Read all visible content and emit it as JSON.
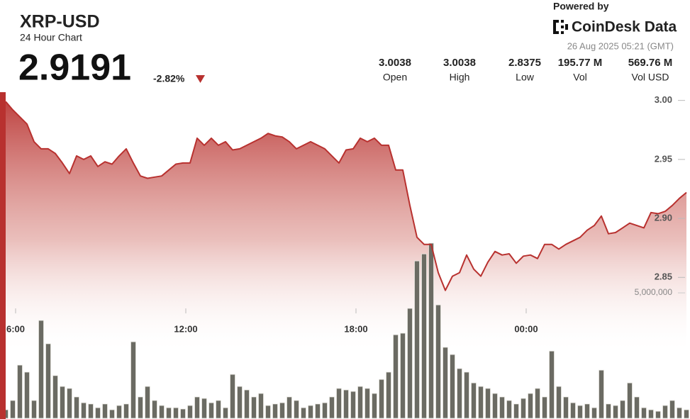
{
  "header": {
    "title": "XRP-USD",
    "subtitle": "24 Hour Chart",
    "price": "2.9191",
    "change": "-2.82%",
    "powered_by": "Powered by",
    "brand": "CoinDesk Data",
    "timestamp": "26 Aug 2025 05:21 (GMT)",
    "stats": [
      {
        "value": "3.0038",
        "label": "Open"
      },
      {
        "value": "3.0038",
        "label": "High"
      },
      {
        "value": "2.8375",
        "label": "Low"
      },
      {
        "value": "195.77 M",
        "label": "Vol"
      },
      {
        "value": "569.76 M",
        "label": "Vol USD"
      }
    ]
  },
  "chart_data": {
    "type": "line",
    "x": [
      5.65,
      5.9,
      6.15,
      6.4,
      6.65,
      6.9,
      7.15,
      7.4,
      7.65,
      7.9,
      8.15,
      8.4,
      8.65,
      8.9,
      9.15,
      9.4,
      9.65,
      9.9,
      10.15,
      10.4,
      10.65,
      10.9,
      11.15,
      11.4,
      11.65,
      11.9,
      12.15,
      12.4,
      12.65,
      12.9,
      13.15,
      13.4,
      13.65,
      13.9,
      14.15,
      14.4,
      14.65,
      14.9,
      15.15,
      15.4,
      15.65,
      15.9,
      16.15,
      16.4,
      16.65,
      16.9,
      17.15,
      17.4,
      17.65,
      17.9,
      18.15,
      18.4,
      18.65,
      18.9,
      19.15,
      19.4,
      19.65,
      19.9,
      20.15,
      20.4,
      20.65,
      20.9,
      21.15,
      21.4,
      21.65,
      21.9,
      22.15,
      22.4,
      22.65,
      22.9,
      23.15,
      23.4,
      23.65,
      23.9,
      24.15,
      24.4,
      24.65,
      24.9,
      25.15,
      25.4,
      25.65,
      25.9,
      26.15,
      26.4,
      26.65,
      26.9,
      27.15,
      27.4,
      27.65,
      27.9,
      28.15,
      28.4,
      28.65,
      28.9,
      29.15,
      29.4,
      29.65
    ],
    "series": [
      {
        "type": "line",
        "color": "#b8312f",
        "values": [
          2.999,
          2.992,
          2.986,
          2.98,
          2.965,
          2.959,
          2.959,
          2.955,
          2.947,
          2.938,
          2.953,
          2.95,
          2.953,
          2.944,
          2.948,
          2.946,
          2.953,
          2.959,
          2.947,
          2.936,
          2.934,
          2.935,
          2.936,
          2.941,
          2.946,
          2.947,
          2.947,
          2.968,
          2.962,
          2.968,
          2.962,
          2.965,
          2.958,
          2.959,
          2.962,
          2.965,
          2.968,
          2.972,
          2.97,
          2.969,
          2.965,
          2.959,
          2.962,
          2.965,
          2.962,
          2.959,
          2.953,
          2.947,
          2.958,
          2.959,
          2.968,
          2.965,
          2.968,
          2.962,
          2.962,
          2.941,
          2.941,
          2.911,
          2.884,
          2.878,
          2.878,
          2.854,
          2.839,
          2.851,
          2.854,
          2.869,
          2.857,
          2.851,
          2.863,
          2.872,
          2.869,
          2.87,
          2.862,
          2.868,
          2.869,
          2.866,
          2.878,
          2.878,
          2.874,
          2.878,
          2.881,
          2.884,
          2.89,
          2.894,
          2.902,
          2.887,
          2.888,
          2.892,
          2.896,
          2.894,
          2.892,
          2.905,
          2.904,
          2.906,
          2.911,
          2.917,
          2.922
        ]
      },
      {
        "type": "bar",
        "axis": "y2",
        "color": "#6b6b63",
        "values": [
          340000,
          710000,
          2120000,
          1840000,
          710000,
          3900000,
          2970000,
          1700000,
          1270000,
          1190000,
          850000,
          620000,
          570000,
          420000,
          570000,
          340000,
          510000,
          570000,
          3050000,
          850000,
          1270000,
          710000,
          510000,
          420000,
          420000,
          370000,
          510000,
          850000,
          790000,
          620000,
          710000,
          420000,
          1750000,
          1270000,
          1130000,
          850000,
          990000,
          510000,
          570000,
          620000,
          850000,
          710000,
          420000,
          510000,
          570000,
          620000,
          850000,
          1190000,
          1130000,
          1070000,
          1270000,
          1190000,
          990000,
          1550000,
          1840000,
          3330000,
          3390000,
          4380000,
          6270000,
          6550000,
          6980000,
          4520000,
          2830000,
          2540000,
          1980000,
          1840000,
          1410000,
          1270000,
          1190000,
          990000,
          850000,
          710000,
          570000,
          790000,
          990000,
          1190000,
          850000,
          2680000,
          1270000,
          850000,
          620000,
          510000,
          570000,
          420000,
          1920000,
          570000,
          510000,
          710000,
          1410000,
          850000,
          420000,
          340000,
          280000,
          510000,
          710000,
          420000,
          340000
        ]
      }
    ],
    "xlim": [
      5.45,
      29.775
    ],
    "xticks": [
      {
        "value": 6,
        "label": "6:00"
      },
      {
        "value": 12,
        "label": "12:00"
      },
      {
        "value": 18,
        "label": "18:00"
      },
      {
        "value": 24,
        "label": "00:00"
      }
    ],
    "ylim": [
      2.73,
      3.007
    ],
    "yticks": [
      {
        "value": 3,
        "label": "3.00"
      },
      2.95,
      {
        "value": 2.9,
        "label": "2.90"
      },
      2.85
    ],
    "y2lim": [
      0,
      13000000
    ],
    "y2ticks": [
      {
        "value": 5000000,
        "label": "5,000,000"
      }
    ],
    "grid": false
  }
}
